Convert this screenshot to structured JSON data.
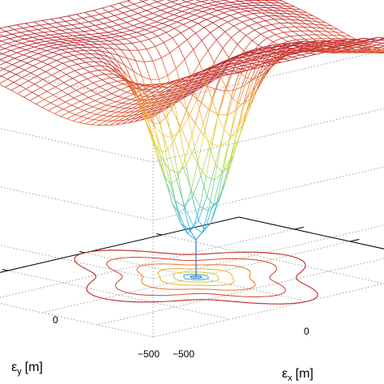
{
  "chart_data": {
    "type": "surface",
    "title": "",
    "xlabel": {
      "symbol": "ε",
      "sub": "x",
      "unit": "[m]"
    },
    "ylabel": {
      "symbol": "ε",
      "sub": "y",
      "unit": "[m]"
    },
    "zlabel": "",
    "x_ticks": [
      "−500",
      "0"
    ],
    "y_ticks": [
      "−500",
      "0"
    ],
    "xlim": [
      -700,
      700
    ],
    "ylim": [
      -700,
      700
    ],
    "grid": true,
    "surface": {
      "description_free": true,
      "mesh_lines_x": 36,
      "mesh_lines_y": 36,
      "minimum_at": [
        0,
        0
      ],
      "colormap": "jet (blue at minimum, red at plateau)"
    },
    "contour_projection": true,
    "contour_colors": [
      "#2b7bd8",
      "#3fb7c9",
      "#c8d44a",
      "#f0b43a",
      "#e8803a",
      "#d5503a",
      "#b82a2a"
    ]
  }
}
